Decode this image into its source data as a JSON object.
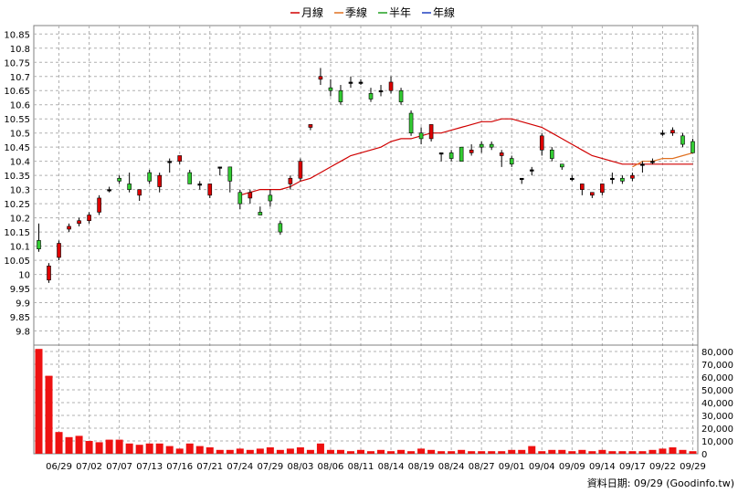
{
  "chart_data": {
    "type": "candlestick",
    "legend": [
      {
        "label": "月線",
        "color": "#d00000"
      },
      {
        "label": "季線",
        "color": "#e07020"
      },
      {
        "label": "半年",
        "color": "#20a020"
      },
      {
        "label": "年線",
        "color": "#2040c0"
      }
    ],
    "price_axis": {
      "min": 9.75,
      "max": 10.88,
      "ticks": [
        "10.85",
        "10.8",
        "10.75",
        "10.7",
        "10.65",
        "10.6",
        "10.55",
        "10.5",
        "10.45",
        "10.4",
        "10.35",
        "10.3",
        "10.25",
        "10.2",
        "10.15",
        "10.1",
        "10.05",
        "10",
        "9.95",
        "9.9",
        "9.85",
        "9.8"
      ]
    },
    "volume_axis": {
      "min": 0,
      "max": 85000,
      "ticks": [
        "80,000",
        "70,000",
        "60,000",
        "50,000",
        "40,000",
        "30,000",
        "20,000",
        "10,000",
        "0"
      ]
    },
    "date_labels": [
      "06/29",
      "07/02",
      "07/07",
      "07/13",
      "07/16",
      "07/21",
      "07/24",
      "07/29",
      "08/03",
      "08/06",
      "08/11",
      "08/14",
      "08/19",
      "08/24",
      "08/27",
      "09/01",
      "09/04",
      "09/09",
      "09/14",
      "09/17",
      "09/22",
      "09/29"
    ],
    "date_label_index": [
      2,
      5,
      8,
      11,
      14,
      17,
      20,
      23,
      26,
      29,
      32,
      35,
      38,
      41,
      44,
      47,
      50,
      53,
      56,
      59,
      62,
      65
    ],
    "candles": [
      {
        "o": 10.12,
        "h": 10.18,
        "l": 10.08,
        "c": 10.09
      },
      {
        "o": 9.98,
        "h": 10.04,
        "l": 9.97,
        "c": 10.03
      },
      {
        "o": 10.06,
        "h": 10.12,
        "l": 10.05,
        "c": 10.11
      },
      {
        "o": 10.16,
        "h": 10.18,
        "l": 10.15,
        "c": 10.17
      },
      {
        "o": 10.18,
        "h": 10.2,
        "l": 10.17,
        "c": 10.19
      },
      {
        "o": 10.19,
        "h": 10.22,
        "l": 10.18,
        "c": 10.21
      },
      {
        "o": 10.22,
        "h": 10.28,
        "l": 10.21,
        "c": 10.27
      },
      {
        "o": 10.3,
        "h": 10.31,
        "l": 10.29,
        "c": 10.3
      },
      {
        "o": 10.34,
        "h": 10.35,
        "l": 10.32,
        "c": 10.33
      },
      {
        "o": 10.32,
        "h": 10.36,
        "l": 10.29,
        "c": 10.3
      },
      {
        "o": 10.28,
        "h": 10.3,
        "l": 10.26,
        "c": 10.3
      },
      {
        "o": 10.36,
        "h": 10.37,
        "l": 10.32,
        "c": 10.33
      },
      {
        "o": 10.31,
        "h": 10.36,
        "l": 10.29,
        "c": 10.35
      },
      {
        "o": 10.4,
        "h": 10.41,
        "l": 10.36,
        "c": 10.4
      },
      {
        "o": 10.4,
        "h": 10.42,
        "l": 10.39,
        "c": 10.42
      },
      {
        "o": 10.36,
        "h": 10.37,
        "l": 10.32,
        "c": 10.32
      },
      {
        "o": 10.32,
        "h": 10.33,
        "l": 10.3,
        "c": 10.32
      },
      {
        "o": 10.28,
        "h": 10.32,
        "l": 10.27,
        "c": 10.32
      },
      {
        "o": 10.38,
        "h": 10.38,
        "l": 10.35,
        "c": 10.38
      },
      {
        "o": 10.38,
        "h": 10.38,
        "l": 10.29,
        "c": 10.33
      },
      {
        "o": 10.29,
        "h": 10.3,
        "l": 10.23,
        "c": 10.25
      },
      {
        "o": 10.27,
        "h": 10.3,
        "l": 10.25,
        "c": 10.29
      },
      {
        "o": 10.22,
        "h": 10.24,
        "l": 10.21,
        "c": 10.21
      },
      {
        "o": 10.28,
        "h": 10.3,
        "l": 10.24,
        "c": 10.26
      },
      {
        "o": 10.18,
        "h": 10.19,
        "l": 10.14,
        "c": 10.15
      },
      {
        "o": 10.32,
        "h": 10.35,
        "l": 10.3,
        "c": 10.34
      },
      {
        "o": 10.34,
        "h": 10.41,
        "l": 10.33,
        "c": 10.4
      },
      {
        "o": 10.52,
        "h": 10.53,
        "l": 10.51,
        "c": 10.53
      },
      {
        "o": 10.69,
        "h": 10.73,
        "l": 10.67,
        "c": 10.7
      },
      {
        "o": 10.66,
        "h": 10.69,
        "l": 10.63,
        "c": 10.65
      },
      {
        "o": 10.65,
        "h": 10.67,
        "l": 10.6,
        "c": 10.61
      },
      {
        "o": 10.68,
        "h": 10.7,
        "l": 10.66,
        "c": 10.68
      },
      {
        "o": 10.68,
        "h": 10.69,
        "l": 10.67,
        "c": 10.68
      },
      {
        "o": 10.64,
        "h": 10.66,
        "l": 10.61,
        "c": 10.62
      },
      {
        "o": 10.65,
        "h": 10.67,
        "l": 10.63,
        "c": 10.65
      },
      {
        "o": 10.65,
        "h": 10.7,
        "l": 10.64,
        "c": 10.68
      },
      {
        "o": 10.65,
        "h": 10.66,
        "l": 10.6,
        "c": 10.61
      },
      {
        "o": 10.57,
        "h": 10.58,
        "l": 10.49,
        "c": 10.5
      },
      {
        "o": 10.5,
        "h": 10.52,
        "l": 10.46,
        "c": 10.48
      },
      {
        "o": 10.48,
        "h": 10.53,
        "l": 10.47,
        "c": 10.53
      },
      {
        "o": 10.43,
        "h": 10.43,
        "l": 10.4,
        "c": 10.43
      },
      {
        "o": 10.43,
        "h": 10.44,
        "l": 10.4,
        "c": 10.41
      },
      {
        "o": 10.45,
        "h": 10.45,
        "l": 10.4,
        "c": 10.4
      },
      {
        "o": 10.43,
        "h": 10.46,
        "l": 10.42,
        "c": 10.44
      },
      {
        "o": 10.46,
        "h": 10.47,
        "l": 10.43,
        "c": 10.45
      },
      {
        "o": 10.46,
        "h": 10.47,
        "l": 10.44,
        "c": 10.45
      },
      {
        "o": 10.42,
        "h": 10.44,
        "l": 10.38,
        "c": 10.43
      },
      {
        "o": 10.41,
        "h": 10.42,
        "l": 10.38,
        "c": 10.39
      },
      {
        "o": 10.34,
        "h": 10.34,
        "l": 10.32,
        "c": 10.34
      },
      {
        "o": 10.37,
        "h": 10.38,
        "l": 10.35,
        "c": 10.37
      },
      {
        "o": 10.44,
        "h": 10.5,
        "l": 10.42,
        "c": 10.49
      },
      {
        "o": 10.44,
        "h": 10.45,
        "l": 10.4,
        "c": 10.41
      },
      {
        "o": 10.39,
        "h": 10.39,
        "l": 10.37,
        "c": 10.38
      },
      {
        "o": 10.34,
        "h": 10.35,
        "l": 10.33,
        "c": 10.34
      },
      {
        "o": 10.3,
        "h": 10.32,
        "l": 10.28,
        "c": 10.32
      },
      {
        "o": 10.28,
        "h": 10.29,
        "l": 10.27,
        "c": 10.29
      },
      {
        "o": 10.29,
        "h": 10.32,
        "l": 10.28,
        "c": 10.32
      },
      {
        "o": 10.34,
        "h": 10.36,
        "l": 10.32,
        "c": 10.34
      },
      {
        "o": 10.34,
        "h": 10.35,
        "l": 10.32,
        "c": 10.33
      },
      {
        "o": 10.34,
        "h": 10.36,
        "l": 10.33,
        "c": 10.35
      },
      {
        "o": 10.39,
        "h": 10.4,
        "l": 10.36,
        "c": 10.39
      },
      {
        "o": 10.4,
        "h": 10.41,
        "l": 10.39,
        "c": 10.4
      },
      {
        "o": 10.5,
        "h": 10.51,
        "l": 10.49,
        "c": 10.5
      },
      {
        "o": 10.5,
        "h": 10.52,
        "l": 10.49,
        "c": 10.51
      },
      {
        "o": 10.49,
        "h": 10.5,
        "l": 10.45,
        "c": 10.46
      },
      {
        "o": 10.47,
        "h": 10.48,
        "l": 10.43,
        "c": 10.43
      }
    ],
    "ma_month": [
      null,
      null,
      null,
      null,
      null,
      null,
      null,
      null,
      null,
      null,
      null,
      null,
      null,
      null,
      null,
      null,
      null,
      null,
      null,
      null,
      10.28,
      10.29,
      10.3,
      10.3,
      10.3,
      10.31,
      10.33,
      10.34,
      10.36,
      10.38,
      10.4,
      10.42,
      10.43,
      10.44,
      10.45,
      10.47,
      10.48,
      10.48,
      10.49,
      10.5,
      10.5,
      10.51,
      10.52,
      10.53,
      10.54,
      10.54,
      10.55,
      10.55,
      10.54,
      10.53,
      10.52,
      10.5,
      10.48,
      10.46,
      10.44,
      10.42,
      10.41,
      10.4,
      10.39,
      10.39,
      10.39,
      10.39,
      10.39,
      10.39,
      10.39,
      10.39
    ],
    "ma_quarter": [
      null,
      null,
      null,
      null,
      null,
      null,
      null,
      null,
      null,
      null,
      null,
      null,
      null,
      null,
      null,
      null,
      null,
      null,
      null,
      null,
      null,
      null,
      null,
      null,
      null,
      null,
      null,
      null,
      null,
      null,
      null,
      null,
      null,
      null,
      null,
      null,
      null,
      null,
      null,
      null,
      null,
      null,
      null,
      null,
      null,
      null,
      null,
      null,
      null,
      null,
      null,
      null,
      null,
      null,
      null,
      null,
      null,
      null,
      null,
      10.38,
      10.4,
      10.4,
      10.41,
      10.41,
      10.42,
      10.43
    ],
    "volume": [
      82000,
      61000,
      17000,
      13000,
      14000,
      10000,
      9000,
      11000,
      11000,
      8000,
      7000,
      8000,
      8000,
      6000,
      4000,
      8000,
      6000,
      5000,
      3000,
      3000,
      4000,
      3000,
      4000,
      5000,
      3000,
      4000,
      5000,
      3000,
      8000,
      3000,
      3000,
      2000,
      3000,
      2000,
      3000,
      2000,
      3000,
      2000,
      4000,
      3000,
      2000,
      2000,
      3000,
      2000,
      2000,
      2000,
      2000,
      3000,
      3000,
      6000,
      2000,
      3000,
      3000,
      2000,
      3000,
      2000,
      3000,
      2000,
      2000,
      2000,
      2000,
      3000,
      4000,
      5000,
      3000,
      2000
    ],
    "footer": "資料日期: 09/29  (Goodinfo.tw)"
  }
}
